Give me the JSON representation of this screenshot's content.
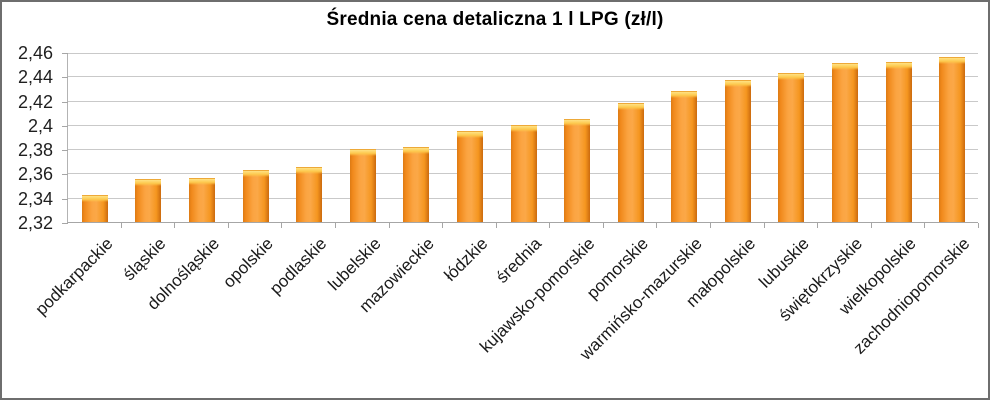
{
  "chart_data": {
    "type": "bar",
    "title": "Średnia cena detaliczna 1 l LPG (zł/l)",
    "xlabel": "",
    "ylabel": "",
    "ylim": [
      2.32,
      2.46
    ],
    "ytick_step": 0.02,
    "ytick_labels": [
      "2,32",
      "2,34",
      "2,36",
      "2,38",
      "2,4",
      "2,42",
      "2,44",
      "2,46"
    ],
    "grid": true,
    "legend": false,
    "categories": [
      "podkarpackie",
      "śląskie",
      "dolnośląskie",
      "opolskie",
      "podlaskie",
      "lubelskie",
      "mazowieckie",
      "łódzkie",
      "średnia",
      "kujawsko-pomorskie",
      "pomorskie",
      "warmińsko-mazurskie",
      "małopolskie",
      "lubuskie",
      "świętokrzyskie",
      "wielkopolskie",
      "zachodniopomorskie"
    ],
    "values": [
      2.342,
      2.355,
      2.356,
      2.363,
      2.365,
      2.38,
      2.382,
      2.395,
      2.4,
      2.405,
      2.418,
      2.428,
      2.437,
      2.443,
      2.451,
      2.452,
      2.456
    ],
    "bar_color": "#F79C39",
    "bar_edge_color": "#CB6A0E",
    "bar_cap_color": "#FFE183",
    "gridline_color": "#C9C9C9",
    "axis_color": "#A6A6A6",
    "text_color": "#1A1A1A",
    "background_color": "#FFFFFF"
  }
}
